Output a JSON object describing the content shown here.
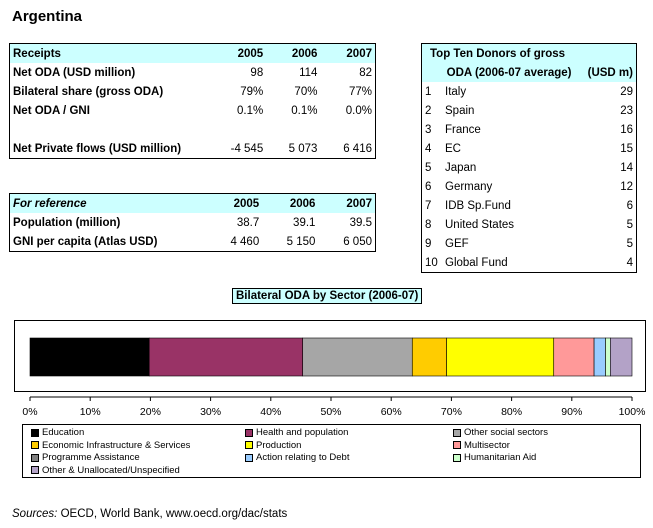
{
  "title": "Argentina",
  "receipts_table": {
    "headers": [
      "Receipts",
      "2005",
      "2006",
      "2007"
    ],
    "rows": [
      {
        "label": "Net ODA (USD million)",
        "values": [
          "98",
          "114",
          "82"
        ]
      },
      {
        "label": "Bilateral share (gross ODA)",
        "values": [
          "79%",
          "70%",
          "77%"
        ]
      },
      {
        "label": "Net ODA / GNI",
        "values": [
          "0.1%",
          "0.1%",
          "0.0%"
        ]
      },
      {
        "label": "",
        "values": [
          "",
          "",
          ""
        ]
      },
      {
        "label": "Net Private flows (USD million)",
        "values": [
          "-4 545",
          "5 073",
          "6 416"
        ]
      }
    ]
  },
  "reference_table": {
    "headers": [
      "For reference",
      "2005",
      "2006",
      "2007"
    ],
    "rows": [
      {
        "label": "Population (million)",
        "values": [
          "38.7",
          "39.1",
          "39.5"
        ]
      },
      {
        "label": "GNI per capita (Atlas USD)",
        "values": [
          "4 460",
          "5 150",
          "6 050"
        ]
      }
    ]
  },
  "donors_table": {
    "title_line1": "Top Ten Donors of gross",
    "title_line2": "ODA (2006-07 average)",
    "unit": "(USD m)",
    "rows": [
      {
        "rank": "1",
        "name": "Italy",
        "value": "29"
      },
      {
        "rank": "2",
        "name": "Spain",
        "value": "23"
      },
      {
        "rank": "3",
        "name": "France",
        "value": "16"
      },
      {
        "rank": "4",
        "name": "EC",
        "value": "15"
      },
      {
        "rank": "5",
        "name": "Japan",
        "value": "14"
      },
      {
        "rank": "6",
        "name": "Germany",
        "value": "12"
      },
      {
        "rank": "7",
        "name": "IDB Sp.Fund",
        "value": "6"
      },
      {
        "rank": "8",
        "name": "United States",
        "value": "5"
      },
      {
        "rank": "9",
        "name": "GEF",
        "value": "5"
      },
      {
        "rank": "10",
        "name": "Global Fund",
        "value": "4"
      }
    ]
  },
  "chart_data": {
    "type": "bar",
    "orientation": "horizontal-stacked",
    "title": "Bilateral ODA by Sector (2006-07)",
    "xlim": [
      0,
      100
    ],
    "x_ticks": [
      "0%",
      "10%",
      "20%",
      "30%",
      "40%",
      "50%",
      "60%",
      "70%",
      "80%",
      "90%",
      "100%"
    ],
    "grid": false,
    "legend_position": "bottom",
    "series": [
      {
        "name": "Education",
        "value": 19.8,
        "color": "#000000"
      },
      {
        "name": "Health and population",
        "value": 25.5,
        "color": "#993366"
      },
      {
        "name": "Other social sectors",
        "value": 18.2,
        "color": "#a6a6a6"
      },
      {
        "name": "Economic Infrastructure & Services",
        "value": 5.7,
        "color": "#ffcc00"
      },
      {
        "name": "Production",
        "value": 17.8,
        "color": "#ffff00"
      },
      {
        "name": "Multisector",
        "value": 6.7,
        "color": "#ff9999"
      },
      {
        "name": "Programme Assistance",
        "value": 0.0,
        "color": "#808080"
      },
      {
        "name": "Action relating to Debt",
        "value": 1.9,
        "color": "#99ccff"
      },
      {
        "name": "Humanitarian Aid",
        "value": 0.8,
        "color": "#ccffcc"
      },
      {
        "name": "Other & Unallocated/Unspecified",
        "value": 3.6,
        "color": "#b3a2c7"
      }
    ]
  },
  "sources": {
    "label": "Sources:",
    "text": "OECD, World Bank, www.oecd.org/dac/stats"
  }
}
